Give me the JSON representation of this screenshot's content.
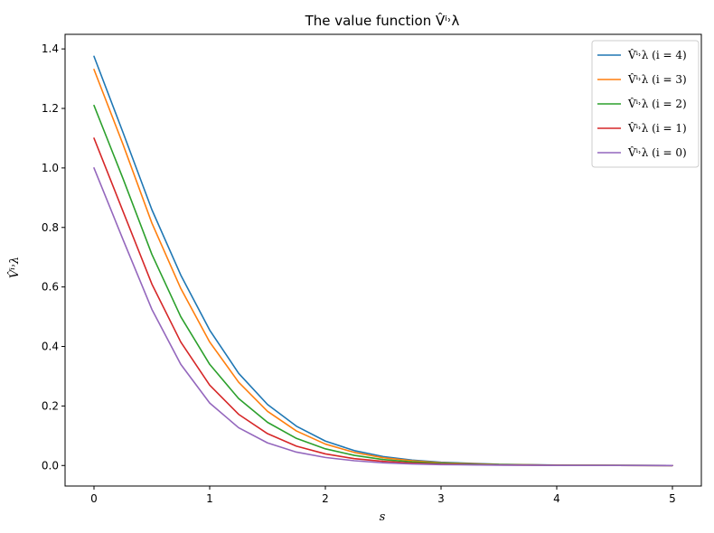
{
  "chart_data": {
    "type": "line",
    "title": "The value function V̂ⁱ˒λ",
    "xlabel": "s",
    "ylabel": "V̂ⁱ˒λ",
    "xlim": [
      -0.25,
      5.25
    ],
    "ylim": [
      -0.069,
      1.449
    ],
    "x_ticks": [
      0,
      1,
      2,
      3,
      4,
      5
    ],
    "x_tick_labels": [
      "0",
      "1",
      "2",
      "3",
      "4",
      "5"
    ],
    "y_ticks": [
      0.0,
      0.2,
      0.4,
      0.6,
      0.8,
      1.0,
      1.2,
      1.4
    ],
    "y_tick_labels": [
      "0.0",
      "0.2",
      "0.4",
      "0.6",
      "0.8",
      "1.0",
      "1.2",
      "1.4"
    ],
    "grid": false,
    "legend_position": "top-right",
    "x": [
      0,
      0.25,
      0.5,
      0.75,
      1.0,
      1.25,
      1.5,
      1.75,
      2.0,
      2.25,
      2.5,
      2.75,
      3.0,
      3.5,
      4.0,
      4.5,
      5.0
    ],
    "series": [
      {
        "name": "V̂ⁱ˒λ (i = 4)",
        "color": "#1f77b4",
        "values": [
          1.375,
          1.12,
          0.86,
          0.64,
          0.455,
          0.31,
          0.205,
          0.132,
          0.082,
          0.05,
          0.03,
          0.018,
          0.011,
          0.004,
          0.0015,
          0.0005,
          0.0
        ]
      },
      {
        "name": "V̂ⁱ˒λ (i = 3)",
        "color": "#ff7f0e",
        "values": [
          1.331,
          1.08,
          0.815,
          0.595,
          0.415,
          0.28,
          0.182,
          0.116,
          0.072,
          0.044,
          0.026,
          0.016,
          0.009,
          0.0035,
          0.0012,
          0.0004,
          0.0
        ]
      },
      {
        "name": "V̂ⁱ˒λ (i = 2)",
        "color": "#2ca02c",
        "values": [
          1.21,
          0.965,
          0.71,
          0.5,
          0.34,
          0.225,
          0.145,
          0.091,
          0.056,
          0.034,
          0.02,
          0.012,
          0.007,
          0.0025,
          0.0009,
          0.0003,
          0.0
        ]
      },
      {
        "name": "V̂ⁱ˒λ (i = 1)",
        "color": "#d62728",
        "values": [
          1.1,
          0.855,
          0.61,
          0.415,
          0.27,
          0.172,
          0.107,
          0.065,
          0.039,
          0.023,
          0.014,
          0.008,
          0.0045,
          0.0016,
          0.0006,
          0.0002,
          0.0
        ]
      },
      {
        "name": "V̂ⁱ˒λ (i = 0)",
        "color": "#9467bd",
        "values": [
          1.0,
          0.76,
          0.525,
          0.34,
          0.21,
          0.127,
          0.076,
          0.045,
          0.027,
          0.016,
          0.009,
          0.005,
          0.003,
          0.001,
          0.0004,
          0.0001,
          0.0
        ]
      }
    ]
  }
}
